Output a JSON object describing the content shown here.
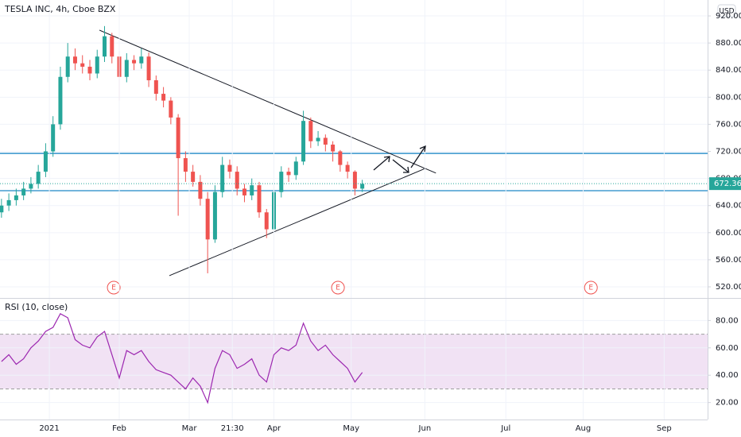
{
  "chart_data": [
    {
      "type": "candlestick",
      "title": "TESLA INC, 4h, Cboe BZX",
      "currency": "USD",
      "x": [
        -13,
        -11,
        -9,
        -7,
        -5,
        -3,
        -1,
        1,
        3,
        5,
        7,
        9,
        11,
        13,
        15,
        17,
        19,
        21,
        23,
        25,
        27,
        29,
        31,
        33,
        35,
        37,
        39,
        41,
        43,
        45,
        47,
        49,
        51,
        53,
        55,
        57,
        59,
        61,
        63,
        65,
        67,
        69,
        71,
        73,
        75,
        77,
        79,
        81,
        83,
        85
      ],
      "open": [
        630,
        640,
        648,
        655,
        665,
        672,
        690,
        720,
        760,
        830,
        860,
        850,
        845,
        835,
        860,
        890,
        860,
        830,
        855,
        850,
        860,
        825,
        805,
        795,
        770,
        710,
        690,
        675,
        650,
        590,
        660,
        700,
        690,
        665,
        655,
        670,
        630,
        605,
        660,
        690,
        685,
        705,
        765,
        735,
        740,
        730,
        720,
        700,
        690,
        665
      ],
      "high": [
        650,
        658,
        665,
        675,
        682,
        700,
        732,
        772,
        845,
        880,
        872,
        862,
        855,
        870,
        905,
        895,
        868,
        865,
        862,
        872,
        866,
        832,
        815,
        800,
        775,
        720,
        700,
        685,
        660,
        670,
        712,
        708,
        698,
        672,
        680,
        675,
        635,
        668,
        698,
        696,
        712,
        780,
        770,
        750,
        745,
        735,
        722,
        705,
        692,
        678
      ],
      "low": [
        622,
        632,
        640,
        648,
        658,
        665,
        682,
        712,
        752,
        822,
        840,
        835,
        825,
        828,
        852,
        850,
        795,
        822,
        840,
        842,
        815,
        795,
        785,
        760,
        625,
        675,
        668,
        640,
        540,
        585,
        652,
        680,
        655,
        645,
        648,
        622,
        592,
        600,
        652,
        675,
        678,
        700,
        725,
        728,
        720,
        705,
        690,
        680,
        655,
        660
      ],
      "close": [
        640,
        648,
        655,
        665,
        672,
        690,
        720,
        760,
        830,
        860,
        850,
        845,
        835,
        860,
        890,
        860,
        830,
        855,
        850,
        860,
        825,
        805,
        795,
        770,
        710,
        690,
        675,
        650,
        590,
        660,
        700,
        690,
        665,
        655,
        670,
        630,
        605,
        660,
        690,
        685,
        705,
        765,
        735,
        740,
        730,
        720,
        700,
        690,
        665,
        672
      ],
      "up_color": "#26a69a",
      "down_color": "#ef5350",
      "xlim": [
        -13.4,
        178.8
      ],
      "ylim": [
        503.6,
        943.5
      ],
      "yticks": [
        {
          "value": 920,
          "label": "920.00"
        },
        {
          "value": 880,
          "label": "880.00"
        },
        {
          "value": 840,
          "label": "840.00"
        },
        {
          "value": 800,
          "label": "800.00"
        },
        {
          "value": 760,
          "label": "760.00"
        },
        {
          "value": 720,
          "label": "720.00"
        },
        {
          "value": 680,
          "label": "680.00"
        },
        {
          "value": 640,
          "label": "640.00"
        },
        {
          "value": 600,
          "label": "600.00"
        },
        {
          "value": 560,
          "label": "560.00"
        },
        {
          "value": 520,
          "label": "520.00"
        }
      ],
      "last_price": 672.36,
      "levels": [
        717,
        662
      ],
      "level_color": "#1e88c7",
      "trendlines": [
        {
          "x": [
            13.6,
            105
          ],
          "y": [
            899,
            688
          ]
        },
        {
          "x": [
            32.6,
            102.2
          ],
          "y": [
            536.5,
            695
          ]
        }
      ],
      "events": [
        {
          "x": 17.5,
          "label": "E"
        },
        {
          "x": 78.4,
          "label": "E"
        },
        {
          "x": 147.1,
          "label": "E"
        }
      ],
      "grid": true
    },
    {
      "type": "line",
      "title": "RSI (10, close)",
      "color": "#9c27b0",
      "x": [
        -13,
        -11,
        -9,
        -7,
        -5,
        -3,
        -1,
        1,
        3,
        5,
        7,
        9,
        11,
        13,
        15,
        17,
        19,
        21,
        23,
        25,
        27,
        29,
        31,
        33,
        35,
        37,
        39,
        41,
        43,
        45,
        47,
        49,
        51,
        53,
        55,
        57,
        59,
        61,
        63,
        65,
        67,
        69,
        71,
        73,
        75,
        77,
        79,
        81,
        83,
        85
      ],
      "values": [
        50,
        55,
        48,
        52,
        60,
        65,
        72,
        75,
        85,
        82,
        66,
        62,
        60,
        68,
        72,
        55,
        38,
        58,
        55,
        58,
        50,
        44,
        42,
        40,
        35,
        30,
        38,
        32,
        20,
        45,
        58,
        55,
        45,
        48,
        52,
        40,
        35,
        55,
        60,
        58,
        62,
        78,
        65,
        58,
        62,
        55,
        50,
        45,
        35,
        42
      ],
      "band": [
        30,
        70
      ],
      "band_color": "#e1bee7",
      "xlim": [
        -13.4,
        178.8
      ],
      "ylim": [
        7.6,
        95.9
      ],
      "yticks": [
        {
          "value": 80,
          "label": "80.00"
        },
        {
          "value": 60,
          "label": "60.00"
        },
        {
          "value": 40,
          "label": "40.00"
        },
        {
          "value": 20,
          "label": "20.00"
        }
      ],
      "xticks": [
        {
          "value": 0,
          "label": "2021"
        },
        {
          "value": 19,
          "label": "Feb"
        },
        {
          "value": 38,
          "label": "Mar"
        },
        {
          "value": 49.7,
          "label": "21:30"
        },
        {
          "value": 61,
          "label": "Apr"
        },
        {
          "value": 82,
          "label": "May"
        },
        {
          "value": 102,
          "label": "Jun"
        },
        {
          "value": 124,
          "label": "Jul"
        },
        {
          "value": 145,
          "label": "Aug"
        },
        {
          "value": 167,
          "label": "Sep"
        }
      ],
      "grid": true
    }
  ]
}
